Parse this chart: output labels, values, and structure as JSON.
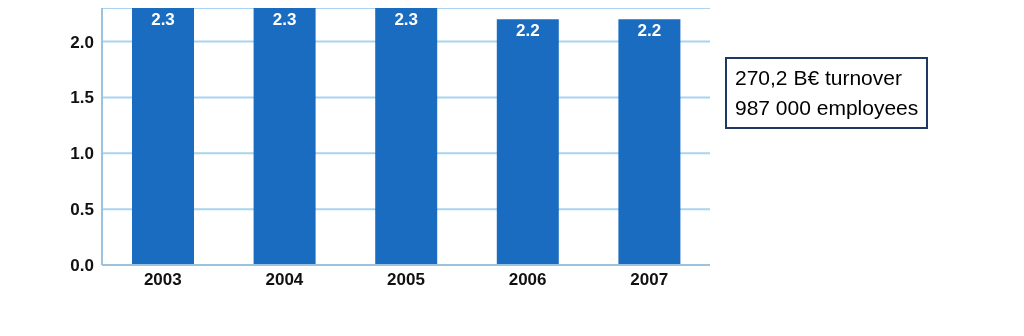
{
  "chart_data": {
    "type": "bar",
    "categories": [
      "2003",
      "2004",
      "2005",
      "2006",
      "2007"
    ],
    "values": [
      2.3,
      2.3,
      2.3,
      2.2,
      2.2
    ],
    "color": "#1a6cc0",
    "ylim": [
      0,
      2.3
    ],
    "yticks": [
      {
        "value": 0,
        "label": "0.0"
      },
      {
        "value": 0.5,
        "label": "0.5"
      },
      {
        "value": 1,
        "label": "1.0"
      },
      {
        "value": 1.5,
        "label": "1.5"
      },
      {
        "value": 2,
        "label": "2.0"
      }
    ],
    "grid": "y",
    "data_labels": true,
    "annotations": [
      "270,2 B€ turnover",
      "987 000 employees"
    ]
  }
}
